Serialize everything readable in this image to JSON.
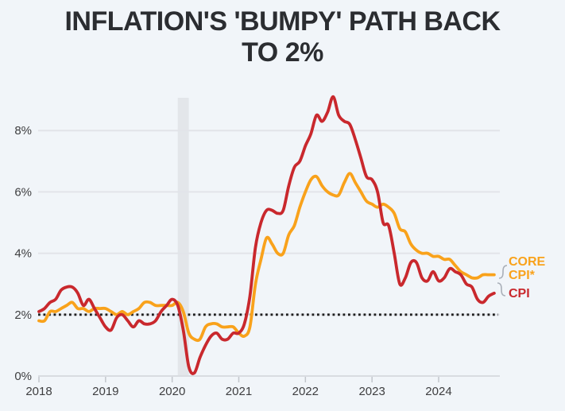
{
  "page": {
    "background": "#F1F5F9"
  },
  "header": {
    "title_line1": "INFLATION'S 'BUMPY' PATH BACK",
    "title_line2": "TO 2%"
  },
  "legend": {
    "core_line1": "CORE",
    "core_line2": "CPI*",
    "cpi": "CPI",
    "core_color": "#F9A21B",
    "cpi_color": "#C9282D"
  },
  "chart_data": {
    "type": "line",
    "title": "INFLATION'S 'BUMPY' PATH BACK TO 2%",
    "frequency": "monthly",
    "x_start": "2018-01",
    "x_end": "2024-11",
    "x_ticks": [
      "2018",
      "2019",
      "2020",
      "2021",
      "2022",
      "2023",
      "2024"
    ],
    "y_ticks": [
      "0%",
      "2%",
      "4%",
      "6%",
      "8%"
    ],
    "y_tick_values": [
      0,
      2,
      4,
      6,
      8
    ],
    "ylim": [
      0,
      9.5
    ],
    "grid": "horizontal",
    "target_line": {
      "value": 2,
      "style": "dotted",
      "color": "#1F1F1F"
    },
    "recession_band": {
      "from": "2020-02",
      "to": "2020-04",
      "color": "#E3E6EA"
    },
    "legend_position": "right-of-line-ends",
    "series": [
      {
        "name": "CORE CPI*",
        "color": "#F9A21B",
        "values": [
          1.8,
          1.8,
          2.1,
          2.1,
          2.2,
          2.3,
          2.4,
          2.2,
          2.2,
          2.1,
          2.2,
          2.2,
          2.2,
          2.1,
          2.0,
          2.1,
          2.0,
          2.1,
          2.2,
          2.4,
          2.4,
          2.3,
          2.3,
          2.3,
          2.3,
          2.4,
          2.1,
          1.4,
          1.2,
          1.2,
          1.6,
          1.7,
          1.7,
          1.6,
          1.6,
          1.6,
          1.4,
          1.3,
          1.6,
          3.0,
          3.8,
          4.5,
          4.3,
          4.0,
          4.0,
          4.6,
          4.9,
          5.5,
          6.0,
          6.4,
          6.5,
          6.2,
          6.0,
          5.9,
          5.9,
          6.3,
          6.6,
          6.3,
          6.0,
          5.7,
          5.6,
          5.5,
          5.6,
          5.5,
          5.3,
          4.8,
          4.7,
          4.3,
          4.1,
          4.0,
          4.0,
          3.9,
          3.9,
          3.8,
          3.8,
          3.6,
          3.4,
          3.3,
          3.2,
          3.2,
          3.3,
          3.3,
          3.3
        ]
      },
      {
        "name": "CPI",
        "color": "#C9282D",
        "values": [
          2.1,
          2.2,
          2.4,
          2.5,
          2.8,
          2.9,
          2.9,
          2.7,
          2.3,
          2.5,
          2.2,
          1.9,
          1.6,
          1.5,
          1.9,
          2.0,
          1.8,
          1.6,
          1.8,
          1.7,
          1.7,
          1.8,
          2.1,
          2.3,
          2.5,
          2.3,
          1.5,
          0.3,
          0.1,
          0.6,
          1.0,
          1.3,
          1.4,
          1.2,
          1.2,
          1.4,
          1.4,
          1.7,
          2.6,
          4.2,
          5.0,
          5.4,
          5.4,
          5.3,
          5.4,
          6.2,
          6.8,
          7.0,
          7.5,
          7.9,
          8.5,
          8.3,
          8.6,
          9.1,
          8.5,
          8.3,
          8.2,
          7.7,
          7.1,
          6.5,
          6.4,
          6.0,
          5.0,
          4.9,
          4.0,
          3.0,
          3.2,
          3.7,
          3.7,
          3.2,
          3.1,
          3.4,
          3.1,
          3.2,
          3.5,
          3.4,
          3.3,
          3.0,
          2.9,
          2.5,
          2.4,
          2.6,
          2.7
        ]
      }
    ]
  }
}
